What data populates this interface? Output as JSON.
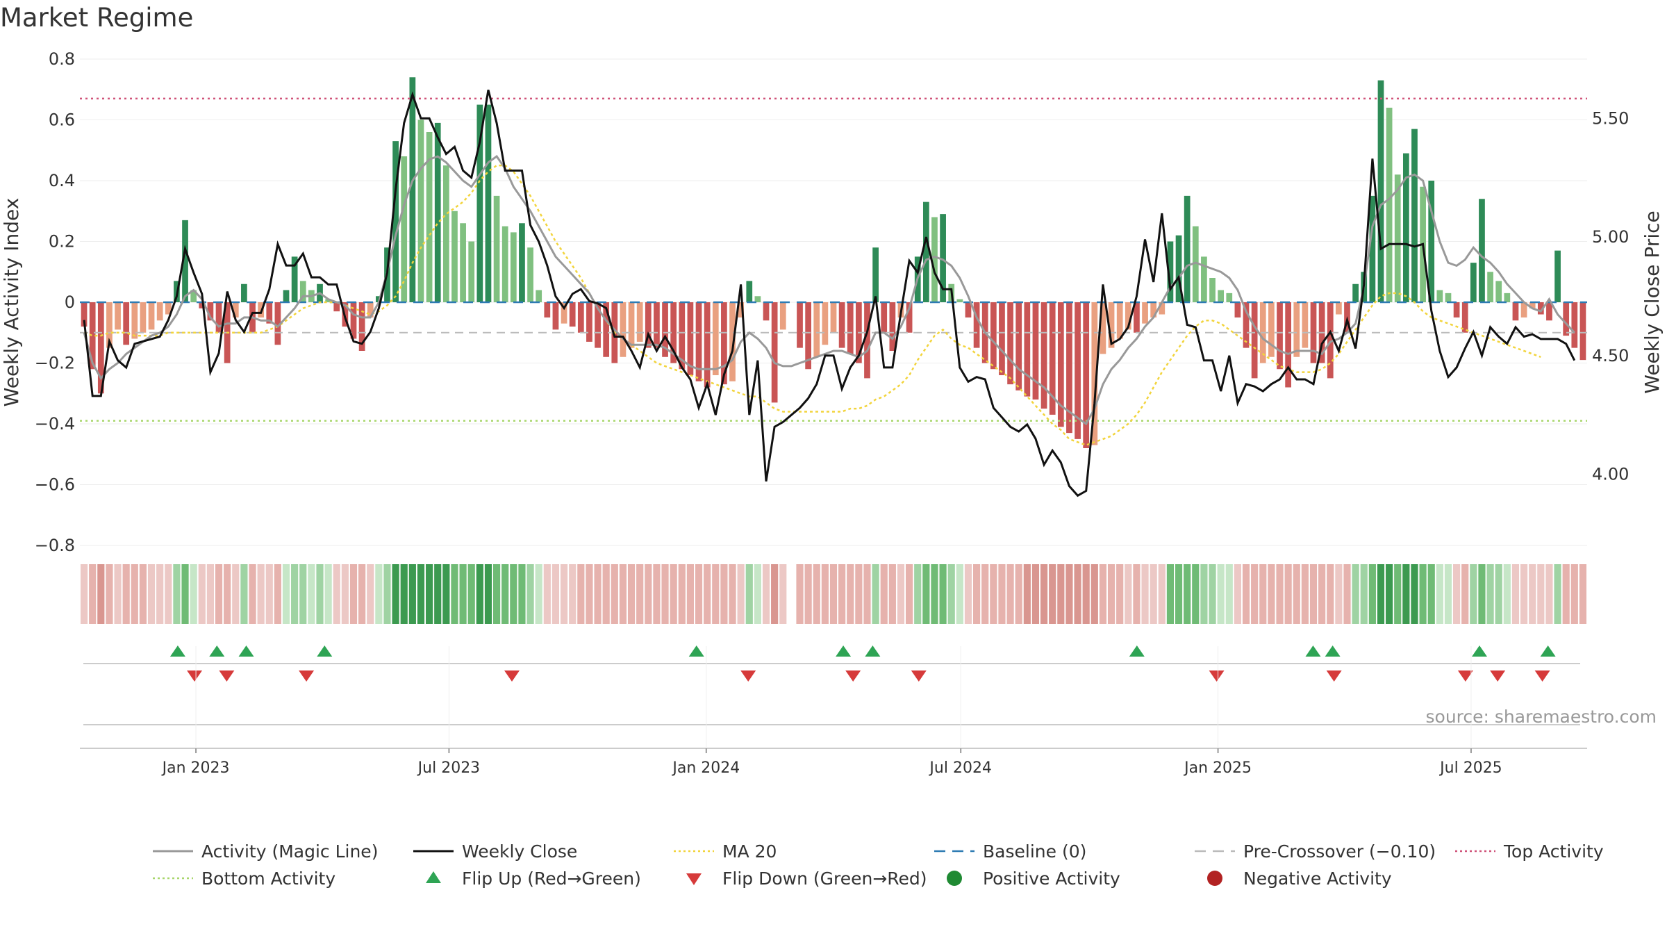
{
  "chart_data": {
    "type": "bar",
    "title": "Market Regime",
    "ylabel_left": "Weekly Activity Index",
    "ylabel_right": "Weekly Close Price",
    "ylim_left": [
      -0.8,
      0.8
    ],
    "yticks_left": [
      "0.8",
      "0.6",
      "0.4",
      "0.2",
      "0",
      "−0.2",
      "−0.4",
      "−0.6",
      "−0.8"
    ],
    "ylim_right": [
      3.7,
      5.75
    ],
    "yticks_right": [
      "5.50",
      "5.00",
      "4.50",
      "4.00"
    ],
    "x_ticks": [
      "Jan 2023",
      "Jul 2023",
      "Jan 2024",
      "Jul 2024",
      "Jan 2025",
      "Jul 2025"
    ],
    "x_start": "2022-10-10",
    "x_end": "2025-09-22",
    "reference_lines": {
      "top_activity": 0.67,
      "bottom_activity": -0.39,
      "pre_crossover": -0.1,
      "baseline": 0
    },
    "activity": [
      -0.08,
      -0.22,
      -0.3,
      -0.15,
      -0.09,
      -0.14,
      -0.12,
      -0.1,
      -0.09,
      -0.06,
      -0.04,
      0.07,
      0.27,
      0.04,
      -0.02,
      -0.06,
      -0.1,
      -0.2,
      -0.05,
      0.06,
      -0.1,
      -0.05,
      -0.07,
      -0.14,
      0.04,
      0.15,
      0.07,
      0.04,
      0.06,
      0.01,
      -0.03,
      -0.08,
      -0.12,
      -0.16,
      -0.05,
      0.02,
      0.18,
      0.53,
      0.48,
      0.74,
      0.6,
      0.56,
      0.59,
      0.45,
      0.3,
      0.26,
      0.2,
      0.65,
      0.65,
      0.35,
      0.25,
      0.23,
      0.26,
      0.18,
      0.04,
      -0.05,
      -0.09,
      -0.07,
      -0.08,
      -0.1,
      -0.13,
      -0.15,
      -0.18,
      -0.2,
      -0.18,
      -0.15,
      -0.13,
      -0.15,
      -0.15,
      -0.18,
      -0.2,
      -0.22,
      -0.24,
      -0.26,
      -0.28,
      -0.24,
      -0.27,
      -0.26,
      -0.05,
      0.07,
      0.02,
      -0.06,
      -0.33,
      -0.09,
      null,
      -0.15,
      -0.22,
      -0.18,
      -0.14,
      -0.1,
      -0.15,
      -0.17,
      -0.2,
      -0.25,
      0.18,
      -0.1,
      -0.16,
      -0.05,
      -0.1,
      0.15,
      0.33,
      0.28,
      0.29,
      0.06,
      0.01,
      -0.05,
      -0.15,
      -0.2,
      -0.22,
      -0.24,
      -0.27,
      -0.29,
      -0.31,
      -0.32,
      -0.35,
      -0.37,
      -0.41,
      -0.43,
      -0.45,
      -0.48,
      -0.47,
      -0.17,
      -0.15,
      -0.12,
      -0.09,
      -0.1,
      -0.07,
      -0.05,
      -0.04,
      0.2,
      0.22,
      0.35,
      0.25,
      0.15,
      0.08,
      0.04,
      0.03,
      -0.05,
      -0.15,
      -0.25,
      -0.2,
      -0.18,
      -0.22,
      -0.28,
      -0.18,
      -0.15,
      -0.2,
      -0.2,
      -0.25,
      -0.04,
      -0.1,
      0.06,
      0.1,
      0.35,
      0.73,
      0.64,
      0.42,
      0.49,
      0.57,
      0.38,
      0.4,
      0.04,
      0.03,
      -0.05,
      -0.1,
      0.13,
      0.34,
      0.1,
      0.07,
      0.03,
      -0.06,
      -0.05,
      -0.02,
      -0.04,
      -0.06,
      0.17,
      -0.11,
      -0.15,
      -0.19
    ],
    "weekly_close": [
      4.65,
      4.33,
      4.33,
      4.56,
      4.48,
      4.45,
      4.55,
      4.56,
      4.57,
      4.58,
      4.65,
      4.75,
      4.95,
      4.85,
      4.76,
      4.43,
      4.51,
      4.77,
      4.65,
      4.6,
      4.68,
      4.68,
      4.78,
      4.97,
      4.88,
      4.88,
      4.93,
      4.83,
      4.83,
      4.8,
      4.8,
      4.66,
      4.56,
      4.55,
      4.6,
      4.7,
      4.85,
      5.2,
      5.48,
      5.6,
      5.5,
      5.5,
      5.42,
      5.35,
      5.38,
      5.28,
      5.25,
      5.4,
      5.62,
      5.48,
      5.28,
      5.28,
      5.28,
      5.05,
      4.98,
      4.88,
      4.75,
      4.7,
      4.76,
      4.78,
      4.73,
      4.72,
      4.7,
      4.58,
      4.58,
      4.52,
      4.45,
      4.59,
      4.52,
      4.58,
      4.52,
      4.45,
      4.4,
      4.28,
      4.38,
      4.25,
      4.42,
      4.52,
      4.8,
      4.25,
      4.48,
      3.97,
      4.2,
      4.22,
      4.25,
      4.28,
      4.32,
      4.38,
      4.5,
      4.5,
      4.36,
      4.45,
      4.5,
      4.6,
      4.75,
      4.45,
      4.45,
      4.68,
      4.9,
      4.85,
      5.0,
      4.85,
      4.78,
      4.78,
      4.45,
      4.39,
      4.41,
      4.4,
      4.28,
      4.24,
      4.2,
      4.18,
      4.21,
      4.15,
      4.04,
      4.1,
      4.05,
      3.95,
      3.91,
      3.93,
      4.3,
      4.8,
      4.55,
      4.57,
      4.62,
      4.75,
      4.99,
      4.81,
      5.1,
      4.78,
      4.83,
      4.63,
      4.62,
      4.48,
      4.48,
      4.35,
      4.5,
      4.3,
      4.38,
      4.37,
      4.35,
      4.38,
      4.4,
      4.45,
      4.4,
      4.4,
      4.38,
      4.55,
      4.6,
      4.52,
      4.65,
      4.53,
      4.8,
      5.33,
      4.95,
      4.97,
      4.97,
      4.97,
      4.96,
      4.97,
      4.69,
      4.52,
      4.41,
      4.45,
      4.53,
      4.6,
      4.5,
      4.62,
      4.58,
      4.55,
      4.62,
      4.58,
      4.59,
      4.57,
      4.57,
      4.57,
      4.55,
      4.48
    ],
    "magic_line": [
      -0.1,
      -0.2,
      -0.25,
      -0.22,
      -0.2,
      -0.17,
      -0.15,
      -0.13,
      -0.11,
      -0.1,
      -0.08,
      -0.04,
      0.02,
      0.04,
      0.01,
      -0.05,
      -0.08,
      -0.07,
      -0.07,
      -0.05,
      -0.05,
      -0.06,
      -0.06,
      -0.08,
      -0.05,
      -0.02,
      0.02,
      0.02,
      0.03,
      0.01,
      0.0,
      -0.01,
      -0.04,
      -0.05,
      -0.05,
      0.0,
      0.1,
      0.22,
      0.32,
      0.4,
      0.44,
      0.47,
      0.48,
      0.46,
      0.43,
      0.4,
      0.38,
      0.42,
      0.46,
      0.48,
      0.44,
      0.38,
      0.34,
      0.3,
      0.25,
      0.2,
      0.15,
      0.12,
      0.09,
      0.06,
      0.03,
      -0.02,
      -0.06,
      -0.09,
      -0.12,
      -0.14,
      -0.14,
      -0.14,
      -0.14,
      -0.15,
      -0.17,
      -0.19,
      -0.21,
      -0.22,
      -0.22,
      -0.22,
      -0.21,
      -0.19,
      -0.13,
      -0.1,
      -0.12,
      -0.15,
      -0.2,
      -0.21,
      -0.21,
      -0.2,
      -0.19,
      -0.18,
      -0.17,
      -0.16,
      -0.16,
      -0.17,
      -0.18,
      -0.16,
      -0.1,
      -0.1,
      -0.12,
      -0.08,
      -0.02,
      0.08,
      0.14,
      0.15,
      0.14,
      0.12,
      0.08,
      0.02,
      -0.05,
      -0.1,
      -0.13,
      -0.16,
      -0.19,
      -0.22,
      -0.24,
      -0.26,
      -0.28,
      -0.31,
      -0.34,
      -0.36,
      -0.38,
      -0.4,
      -0.35,
      -0.27,
      -0.22,
      -0.19,
      -0.15,
      -0.12,
      -0.08,
      -0.05,
      0.0,
      0.05,
      0.08,
      0.12,
      0.13,
      0.12,
      0.11,
      0.1,
      0.08,
      0.04,
      -0.03,
      -0.08,
      -0.12,
      -0.14,
      -0.16,
      -0.17,
      -0.16,
      -0.16,
      -0.16,
      -0.17,
      -0.13,
      -0.12,
      -0.1,
      -0.07,
      0.05,
      0.25,
      0.32,
      0.34,
      0.37,
      0.41,
      0.42,
      0.4,
      0.3,
      0.2,
      0.13,
      0.12,
      0.14,
      0.18,
      0.15,
      0.13,
      0.1,
      0.06,
      0.03,
      0.0,
      -0.02,
      -0.03,
      0.01,
      -0.04,
      -0.07,
      -0.1
    ],
    "ma20": [
      -0.1,
      -0.11,
      -0.11,
      -0.1,
      -0.1,
      -0.1,
      -0.11,
      -0.11,
      -0.11,
      -0.11,
      -0.1,
      -0.1,
      -0.1,
      -0.1,
      -0.1,
      -0.1,
      -0.1,
      -0.1,
      -0.1,
      -0.1,
      -0.1,
      -0.1,
      -0.09,
      -0.08,
      -0.06,
      -0.04,
      -0.02,
      -0.01,
      0.0,
      0.0,
      0.0,
      -0.01,
      -0.02,
      -0.03,
      -0.04,
      -0.03,
      -0.01,
      0.02,
      0.07,
      0.13,
      0.18,
      0.22,
      0.26,
      0.29,
      0.31,
      0.33,
      0.36,
      0.4,
      0.43,
      0.45,
      0.45,
      0.43,
      0.39,
      0.35,
      0.3,
      0.25,
      0.2,
      0.16,
      0.12,
      0.08,
      0.03,
      -0.02,
      -0.06,
      -0.1,
      -0.12,
      -0.14,
      -0.16,
      -0.18,
      -0.2,
      -0.21,
      -0.22,
      -0.23,
      -0.24,
      -0.25,
      -0.26,
      -0.27,
      -0.28,
      -0.29,
      -0.3,
      -0.31,
      -0.31,
      -0.33,
      -0.35,
      -0.36,
      -0.36,
      -0.36,
      -0.36,
      -0.36,
      -0.36,
      -0.36,
      -0.36,
      -0.35,
      -0.35,
      -0.34,
      -0.32,
      -0.31,
      -0.29,
      -0.27,
      -0.24,
      -0.19,
      -0.15,
      -0.11,
      -0.09,
      -0.12,
      -0.14,
      -0.15,
      -0.17,
      -0.19,
      -0.21,
      -0.23,
      -0.25,
      -0.28,
      -0.31,
      -0.34,
      -0.37,
      -0.4,
      -0.42,
      -0.45,
      -0.46,
      -0.47,
      -0.46,
      -0.45,
      -0.44,
      -0.42,
      -0.4,
      -0.37,
      -0.33,
      -0.28,
      -0.23,
      -0.19,
      -0.15,
      -0.11,
      -0.08,
      -0.06,
      -0.06,
      -0.07,
      -0.09,
      -0.11,
      -0.13,
      -0.15,
      -0.17,
      -0.19,
      -0.21,
      -0.22,
      -0.23,
      -0.23,
      -0.23,
      -0.22,
      -0.2,
      -0.17,
      -0.13,
      -0.09,
      -0.05,
      -0.01,
      0.02,
      0.03,
      0.03,
      0.02,
      0.0,
      -0.03,
      -0.05,
      -0.06,
      -0.07,
      -0.08,
      -0.09,
      -0.1,
      -0.11,
      -0.12,
      -0.13,
      -0.14,
      -0.15,
      -0.16,
      -0.17,
      -0.18
    ],
    "flip_up_dates": [
      "2022-12-19",
      "2023-01-16",
      "2023-02-06",
      "2023-04-03",
      "2023-12-25",
      "2024-04-08",
      "2024-04-29",
      "2024-11-04",
      "2025-03-10",
      "2025-03-24",
      "2025-07-07",
      "2025-08-25"
    ],
    "flip_down_dates": [
      "2022-12-31",
      "2023-01-23",
      "2023-03-21",
      "2023-08-15",
      "2024-01-31",
      "2024-04-15",
      "2024-06-01",
      "2024-12-31",
      "2025-03-25",
      "2025-06-27",
      "2025-07-20",
      "2025-08-21"
    ],
    "legend": [
      {
        "label": "Activity (Magic Line)",
        "color": "#999999",
        "style": "line"
      },
      {
        "label": "Weekly Close",
        "color": "#111111",
        "style": "line"
      },
      {
        "label": "MA 20",
        "color": "#f2d43c",
        "style": "dotted"
      },
      {
        "label": "Baseline (0)",
        "color": "#2e7bb3",
        "style": "dashed"
      },
      {
        "label": "Pre-Crossover (−0.10)",
        "color": "#bbbbbb",
        "style": "dashed"
      },
      {
        "label": "Top Activity",
        "color": "#d0547a",
        "style": "dotted"
      },
      {
        "label": "Bottom Activity",
        "color": "#a8d66b",
        "style": "dotted"
      },
      {
        "label": "Flip Up (Red→Green)",
        "color": "#2ea454",
        "style": "triangle-up"
      },
      {
        "label": "Flip Down (Green→Red)",
        "color": "#d63a3a",
        "style": "triangle-down"
      },
      {
        "label": "Positive Activity",
        "color": "#1f8a33",
        "style": "circle"
      },
      {
        "label": "Negative Activity",
        "color": "#b22222",
        "style": "circle"
      }
    ],
    "source": "source: sharemaestro.com"
  }
}
